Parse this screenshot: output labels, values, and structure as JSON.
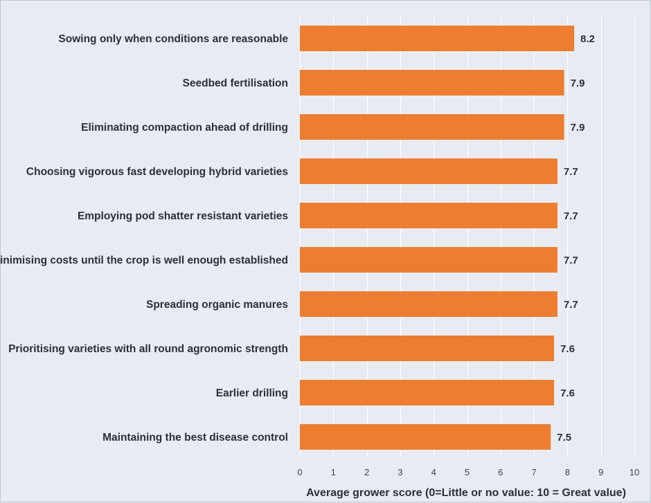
{
  "chart_data": {
    "type": "bar",
    "orientation": "horizontal",
    "title": "",
    "xlabel": "Average grower score (0=Little or no value: 10 = Great value)",
    "ylabel": "",
    "xlim": [
      0,
      10
    ],
    "xticks": [
      "0",
      "1",
      "2",
      "3",
      "4",
      "5",
      "6",
      "7",
      "8",
      "9",
      "10"
    ],
    "grid": true,
    "bar_color": "#ed7d31",
    "categories": [
      "Sowing only when conditions are reasonable",
      "Seedbed fertilisation",
      "Eliminating compaction ahead of drilling",
      "Choosing vigorous fast developing hybrid varieties",
      "Employing pod shatter resistant varieties",
      "Minimising costs until the crop is well enough established",
      "Spreading organic manures",
      "Prioritising varieties with all round agronomic strength",
      "Earlier drilling",
      "Maintaining the best disease control"
    ],
    "values": [
      8.2,
      7.9,
      7.9,
      7.7,
      7.7,
      7.7,
      7.7,
      7.6,
      7.6,
      7.5
    ],
    "value_labels": [
      "8.2",
      "7.9",
      "7.9",
      "7.7",
      "7.7",
      "7.7",
      "7.7",
      "7.6",
      "7.6",
      "7.5"
    ]
  }
}
